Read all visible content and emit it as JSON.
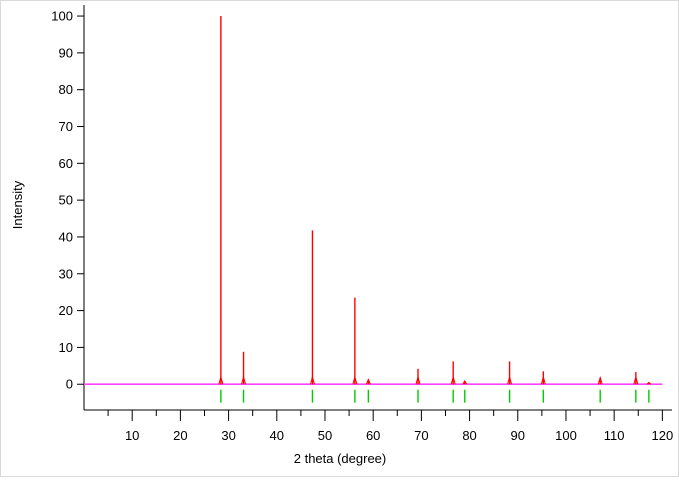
{
  "chart_data": {
    "type": "line",
    "title": "",
    "xlabel": "2 theta (degree)",
    "ylabel": "Intensity",
    "xlim": [
      0,
      122
    ],
    "ylim": [
      -7,
      103
    ],
    "x_ticks": [
      10,
      20,
      30,
      40,
      50,
      60,
      70,
      80,
      90,
      100,
      110,
      120
    ],
    "y_ticks": [
      0,
      10,
      20,
      30,
      40,
      50,
      60,
      70,
      80,
      90,
      100
    ],
    "grid": false,
    "legend": "none",
    "series": [
      {
        "style": "red-sticks",
        "color": "#ff0000",
        "peaks": [
          {
            "x": 28.4,
            "y": 100
          },
          {
            "x": 33.1,
            "y": 8.8
          },
          {
            "x": 47.4,
            "y": 41.8
          },
          {
            "x": 56.2,
            "y": 23.5
          },
          {
            "x": 59.0,
            "y": 1.3
          },
          {
            "x": 69.3,
            "y": 4.2
          },
          {
            "x": 76.6,
            "y": 6.2
          },
          {
            "x": 79.0,
            "y": 0.9
          },
          {
            "x": 88.3,
            "y": 6.2
          },
          {
            "x": 95.3,
            "y": 3.5
          },
          {
            "x": 107.1,
            "y": 1.8
          },
          {
            "x": 114.5,
            "y": 3.3
          },
          {
            "x": 117.2,
            "y": 0.5
          }
        ]
      },
      {
        "style": "baseline",
        "color": "#ff44ff",
        "x": [
          0,
          120
        ],
        "y": [
          0,
          0
        ]
      },
      {
        "style": "green-reference-ticks",
        "color": "#00cc00",
        "y_from": -1.5,
        "y_to": -5,
        "x": [
          28.4,
          33.1,
          47.4,
          56.2,
          59.0,
          69.3,
          76.6,
          79.0,
          88.3,
          95.3,
          107.1,
          114.5,
          117.2
        ]
      }
    ]
  }
}
